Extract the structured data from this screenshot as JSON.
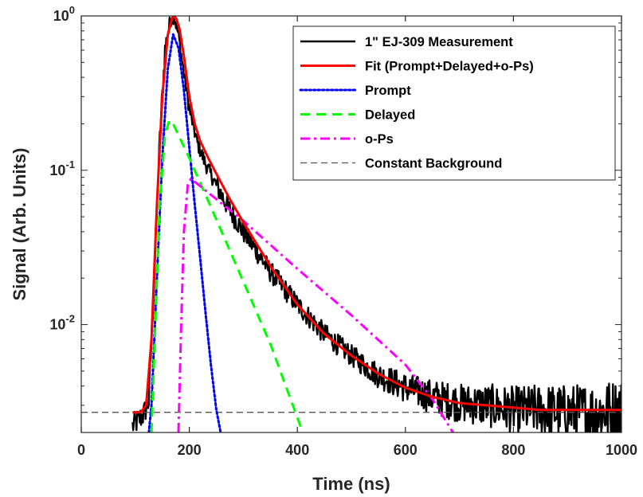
{
  "chart_data": {
    "type": "line",
    "title": "",
    "xlabel": "Time (ns)",
    "ylabel": "Signal (Arb. Units)",
    "xlim": [
      0,
      1000
    ],
    "ylim": [
      0.002,
      1
    ],
    "yscale": "log",
    "grid": false,
    "legend_position": "top-right",
    "x_ticks": [
      0,
      200,
      400,
      600,
      800,
      1000
    ],
    "y_ticks": [
      {
        "value": 0.01,
        "base": "10",
        "exp": "-2"
      },
      {
        "value": 0.1,
        "base": "10",
        "exp": "-1"
      },
      {
        "value": 1,
        "base": "10",
        "exp": "0"
      }
    ],
    "series": [
      {
        "name": "1\" EJ-309 Measurement",
        "color": "#000000",
        "style": "solid-thick-noisy",
        "x": [
          95,
          105,
          115,
          125,
          135,
          145,
          155,
          165,
          172,
          180,
          190,
          200,
          215,
          230,
          250,
          275,
          300,
          350,
          400,
          450,
          500,
          550,
          600,
          650,
          700,
          750,
          800,
          850,
          900,
          950,
          1000
        ],
        "y": [
          0.0022,
          0.0024,
          0.0026,
          0.0032,
          0.02,
          0.15,
          0.6,
          0.95,
          1.0,
          0.75,
          0.42,
          0.25,
          0.15,
          0.11,
          0.08,
          0.055,
          0.04,
          0.022,
          0.0135,
          0.0087,
          0.0063,
          0.0047,
          0.0039,
          0.0034,
          0.0031,
          0.003,
          0.0028,
          0.0028,
          0.0027,
          0.0027,
          0.0028
        ]
      },
      {
        "name": "Fit (Prompt+Delayed+o-Ps)",
        "color": "#ff0000",
        "style": "solid",
        "x": [
          95,
          110,
          120,
          130,
          140,
          150,
          160,
          168,
          172,
          176,
          182,
          190,
          200,
          210,
          220,
          235,
          250,
          275,
          300,
          350,
          400,
          450,
          500,
          550,
          600,
          650,
          700,
          750,
          800,
          850,
          900,
          950,
          1000
        ],
        "y": [
          0.0027,
          0.0027,
          0.003,
          0.008,
          0.06,
          0.3,
          0.75,
          0.97,
          1.0,
          0.96,
          0.82,
          0.55,
          0.3,
          0.2,
          0.155,
          0.12,
          0.095,
          0.065,
          0.046,
          0.024,
          0.0135,
          0.0087,
          0.0063,
          0.0048,
          0.0039,
          0.0034,
          0.0031,
          0.003,
          0.0029,
          0.0028,
          0.0028,
          0.0028,
          0.0028
        ]
      },
      {
        "name": "Prompt",
        "color": "#0000ff",
        "style": "dotted",
        "x": [
          125,
          130,
          140,
          150,
          160,
          170,
          180,
          190,
          200,
          210,
          220,
          230,
          240,
          250,
          258
        ],
        "y": [
          0.002,
          0.003,
          0.02,
          0.12,
          0.45,
          0.76,
          0.62,
          0.33,
          0.14,
          0.06,
          0.027,
          0.012,
          0.0055,
          0.0028,
          0.002
        ]
      },
      {
        "name": "Delayed",
        "color": "#00ff00",
        "style": "dashed",
        "x": [
          130,
          137,
          145,
          155,
          163,
          170,
          200,
          250,
          300,
          350,
          400,
          410
        ],
        "y": [
          0.002,
          0.01,
          0.06,
          0.17,
          0.21,
          0.2,
          0.12,
          0.048,
          0.019,
          0.0075,
          0.0025,
          0.002
        ]
      },
      {
        "name": "o-Ps",
        "color": "#ff00ff",
        "style": "dashdot",
        "x": [
          180,
          185,
          190,
          197,
          203,
          207,
          250,
          300,
          400,
          500,
          600,
          650,
          688
        ],
        "y": [
          0.002,
          0.01,
          0.04,
          0.08,
          0.088,
          0.086,
          0.065,
          0.047,
          0.023,
          0.0115,
          0.0055,
          0.0033,
          0.002
        ]
      },
      {
        "name": "Constant Background",
        "color": "#555555",
        "style": "dashed-thin",
        "x": [
          0,
          1000
        ],
        "y": [
          0.0027,
          0.0027
        ]
      }
    ]
  }
}
